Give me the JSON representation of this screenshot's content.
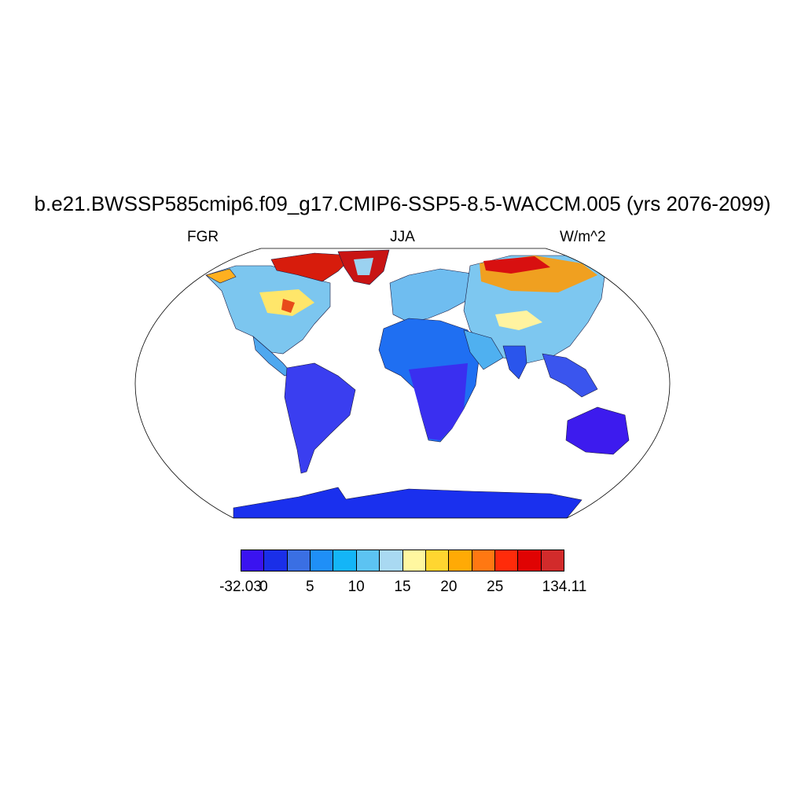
{
  "title": "b.e21.BWSSP585cmip6.f09_g17.CMIP6-SSP5-8.5-WACCM.005 (yrs 2076-2099)",
  "subtitle_left": "FGR",
  "subtitle_center": "JJA",
  "subtitle_right": "W/m^2",
  "projection": "robinson",
  "colorbar": {
    "colors": [
      "#3a13f0",
      "#1a2fe8",
      "#3a6fe3",
      "#1f8ff7",
      "#14b5f7",
      "#5cc3f2",
      "#a9d9f2",
      "#fff7a0",
      "#ffd630",
      "#ffaa05",
      "#ff7812",
      "#ff2b0a",
      "#e00303",
      "#d22b2b"
    ],
    "labels": [
      {
        "text": "-32.03",
        "boundary": 0
      },
      {
        "text": "0",
        "boundary": 1
      },
      {
        "text": "5",
        "boundary": 3
      },
      {
        "text": "10",
        "boundary": 5
      },
      {
        "text": "15",
        "boundary": 7
      },
      {
        "text": "20",
        "boundary": 9
      },
      {
        "text": "25",
        "boundary": 11
      },
      {
        "text": "134.11",
        "boundary": 14
      }
    ]
  }
}
